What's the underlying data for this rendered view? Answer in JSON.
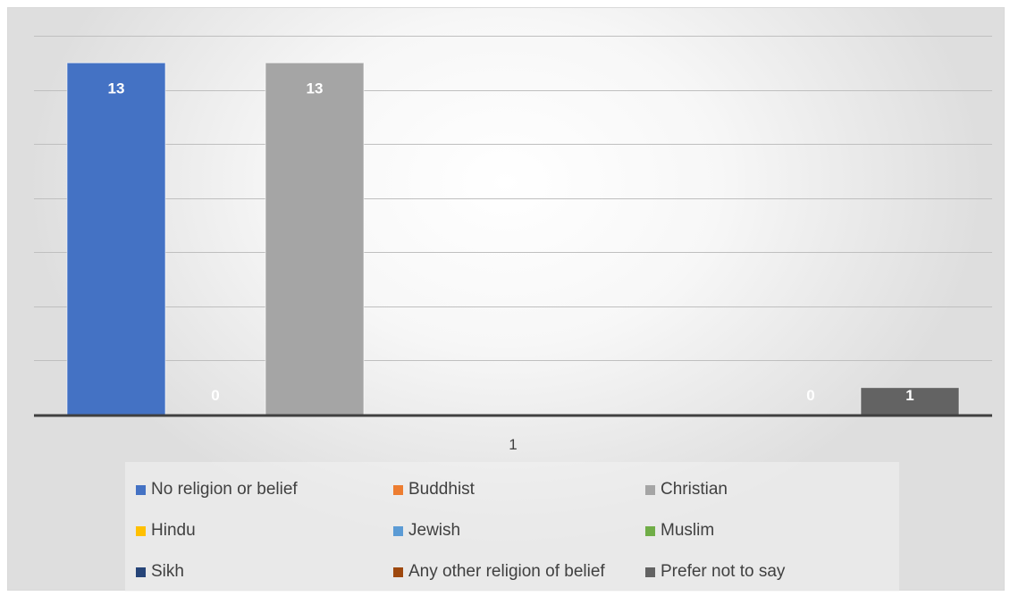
{
  "chart_data": {
    "type": "bar",
    "categories": [
      "1"
    ],
    "series": [
      {
        "name": "No religion or belief",
        "values": [
          13
        ],
        "color": "#4472C4"
      },
      {
        "name": "Buddhist",
        "values": [
          0
        ],
        "color": "#ED7D31"
      },
      {
        "name": "Christian",
        "values": [
          13
        ],
        "color": "#A5A5A5"
      },
      {
        "name": "Hindu",
        "values": [
          null
        ],
        "color": "#FFC000"
      },
      {
        "name": "Jewish",
        "values": [
          null
        ],
        "color": "#5B9BD5"
      },
      {
        "name": "Muslim",
        "values": [
          null
        ],
        "color": "#70AD47"
      },
      {
        "name": "Sikh",
        "values": [
          null
        ],
        "color": "#264478"
      },
      {
        "name": "Any other religion of belief",
        "values": [
          0
        ],
        "color": "#9E480E"
      },
      {
        "name": "Prefer not to say",
        "values": [
          1
        ],
        "color": "#636363"
      }
    ],
    "title": "",
    "xlabel": "",
    "ylabel": "",
    "ylim": [
      0,
      14
    ],
    "grid": true,
    "legend_position": "bottom"
  }
}
